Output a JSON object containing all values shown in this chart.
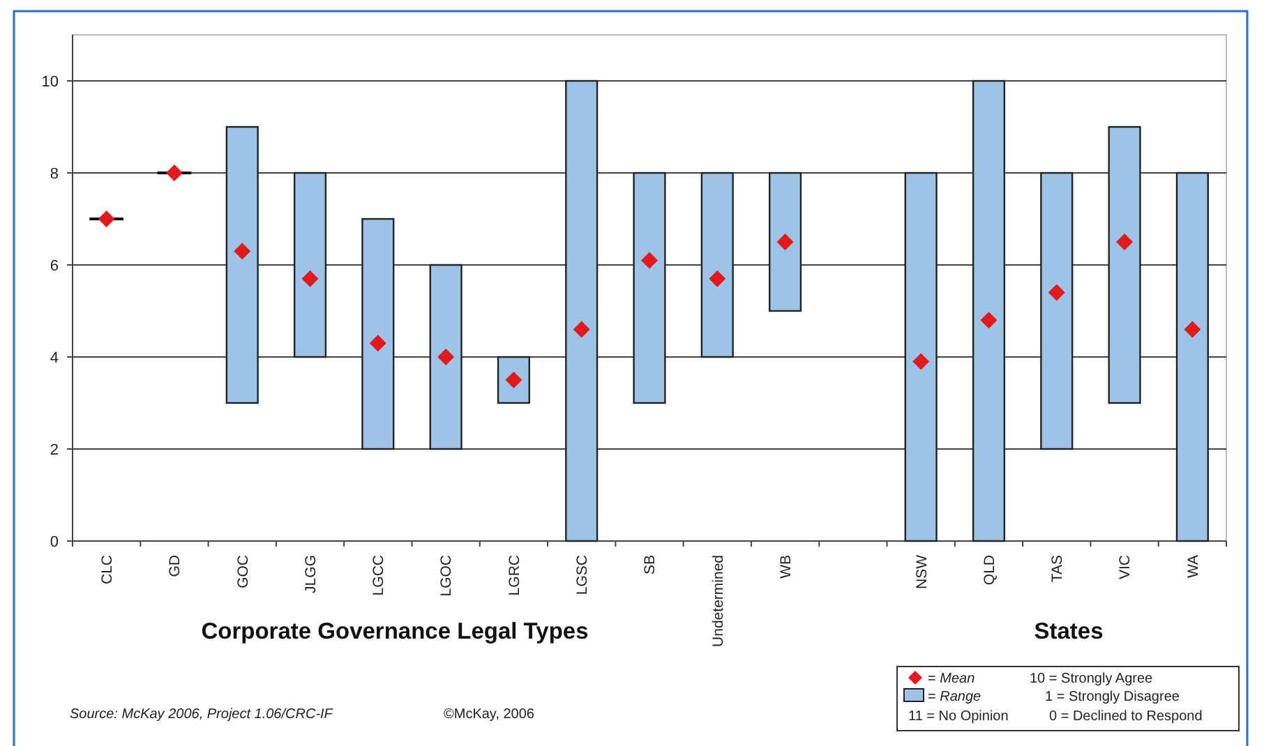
{
  "chart_data": {
    "type": "bar",
    "categories": [
      "CLC",
      "GD",
      "GOC",
      "JLGG",
      "LGCC",
      "LGOC",
      "LGRC",
      "LGSC",
      "SB",
      "Undetermined",
      "WB",
      null,
      "NSW",
      "QLD",
      "TAS",
      "VIC",
      "WA"
    ],
    "series": [
      {
        "name": "Range",
        "color": "#9dc3e6",
        "colors": [
          "#111111",
          "#111111",
          "#9dc3e6",
          "#9dc3e6",
          "#9dc3e6",
          "#9dc3e6",
          "#9dc3e6",
          "#9dc3e6",
          "#9dc3e6",
          "#9dc3e6",
          "#9dc3e6",
          null,
          "#9dc3e6",
          "#9dc3e6",
          "#9dc3e6",
          "#9dc3e6",
          "#9dc3e6"
        ],
        "base": [
          7,
          8,
          3,
          4,
          2,
          2,
          3,
          0,
          3,
          4,
          5,
          null,
          0,
          0,
          2,
          3,
          0
        ],
        "values": [
          0,
          0,
          6,
          4,
          5,
          4,
          1,
          10,
          5,
          4,
          3,
          null,
          8,
          10,
          6,
          6,
          8
        ]
      },
      {
        "name": "Mean",
        "type": "scatter",
        "color": "#e31a1c",
        "marker": "diamond",
        "x": [
          "CLC",
          "GD",
          "GOC",
          "JLGG",
          "LGCC",
          "LGOC",
          "LGRC",
          "LGSC",
          "SB",
          "Undetermined",
          "WB",
          "NSW",
          "QLD",
          "TAS",
          "VIC",
          "WA"
        ],
        "values": [
          7,
          8,
          6.3,
          5.7,
          4.3,
          4,
          3.5,
          4.6,
          6.1,
          5.7,
          6.5,
          3.9,
          4.8,
          5.4,
          6.5,
          4.6
        ]
      }
    ],
    "ylim": [
      0,
      11
    ],
    "yticks": [
      0,
      2,
      4,
      6,
      8,
      10
    ],
    "grid": "y",
    "legend": "bottom right",
    "annotations": [
      "Corporate Governance Legal Types",
      "States",
      "Source: McKay 2006, Project 1.06/CRC-IF",
      "©McKay, 2006",
      "10 = Strongly Agree",
      "1 = Strongly Disagree",
      "11 = No Opinion",
      "0 = Declined to Respond",
      "=",
      "="
    ]
  }
}
